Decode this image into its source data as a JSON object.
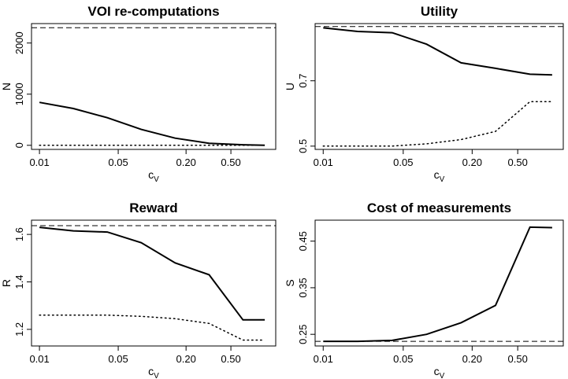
{
  "chart_data": [
    {
      "type": "line",
      "title": "VOI re-computations",
      "xlabel": "c",
      "xlabel_sub": "V",
      "ylabel": "N",
      "xscale": "log",
      "xlim": [
        0.0085,
        1.25
      ],
      "ylim": [
        -80,
        2380
      ],
      "x_ticks": [
        "0.01",
        "0.05",
        "0.20",
        "0.50"
      ],
      "y_ticks": [
        "0",
        "1000",
        "2000"
      ],
      "x": [
        0.01,
        0.02,
        0.04,
        0.08,
        0.16,
        0.32,
        0.64,
        1.0
      ],
      "series": [
        {
          "style": "solid",
          "values": [
            840,
            720,
            540,
            310,
            140,
            40,
            10,
            0
          ]
        },
        {
          "style": "dotted",
          "values": [
            0,
            0,
            0,
            0,
            0,
            0,
            0,
            0
          ]
        },
        {
          "style": "dashed",
          "hline": 2300
        }
      ]
    },
    {
      "type": "line",
      "title": "Utility",
      "xlabel": "c",
      "xlabel_sub": "V",
      "ylabel": "U",
      "xscale": "log",
      "xlim": [
        0.0085,
        1.25
      ],
      "ylim": [
        0.49,
        0.875
      ],
      "x_ticks": [
        "0.01",
        "0.05",
        "0.20",
        "0.50"
      ],
      "y_ticks": [
        "0.5",
        "0.7"
      ],
      "x": [
        0.01,
        0.02,
        0.04,
        0.08,
        0.16,
        0.32,
        0.64,
        1.0
      ],
      "series": [
        {
          "style": "solid",
          "values": [
            0.862,
            0.851,
            0.847,
            0.812,
            0.755,
            0.738,
            0.72,
            0.718
          ]
        },
        {
          "style": "dotted",
          "values": [
            0.5,
            0.5,
            0.5,
            0.507,
            0.52,
            0.545,
            0.636,
            0.636
          ]
        },
        {
          "style": "dashed",
          "hline": 0.866
        }
      ]
    },
    {
      "type": "line",
      "title": "Reward",
      "xlabel": "c",
      "xlabel_sub": "V",
      "ylabel": "R",
      "xscale": "log",
      "xlim": [
        0.0085,
        1.25
      ],
      "ylim": [
        1.13,
        1.66
      ],
      "x_ticks": [
        "0.01",
        "0.05",
        "0.20",
        "0.50"
      ],
      "y_ticks": [
        "1.2",
        "1.4",
        "1.6"
      ],
      "x": [
        0.01,
        0.02,
        0.04,
        0.08,
        0.16,
        0.32,
        0.64,
        1.0
      ],
      "series": [
        {
          "style": "solid",
          "values": [
            1.63,
            1.615,
            1.61,
            1.565,
            1.48,
            1.43,
            1.24,
            1.24
          ]
        },
        {
          "style": "dotted",
          "values": [
            1.26,
            1.26,
            1.26,
            1.255,
            1.245,
            1.225,
            1.155,
            1.155
          ]
        },
        {
          "style": "dashed",
          "hline": 1.637
        }
      ]
    },
    {
      "type": "line",
      "title": "Cost of measurements",
      "xlabel": "c",
      "xlabel_sub": "V",
      "ylabel": "S",
      "xscale": "log",
      "xlim": [
        0.0085,
        1.25
      ],
      "ylim": [
        0.225,
        0.495
      ],
      "x_ticks": [
        "0.01",
        "0.05",
        "0.20",
        "0.50"
      ],
      "y_ticks": [
        "0.25",
        "0.35",
        "0.45"
      ],
      "x": [
        0.01,
        0.02,
        0.04,
        0.08,
        0.16,
        0.32,
        0.64,
        1.0
      ],
      "series": [
        {
          "style": "solid",
          "values": [
            0.235,
            0.235,
            0.237,
            0.25,
            0.275,
            0.312,
            0.48,
            0.479
          ]
        },
        {
          "style": "dashed",
          "hline": 0.235
        }
      ]
    }
  ]
}
